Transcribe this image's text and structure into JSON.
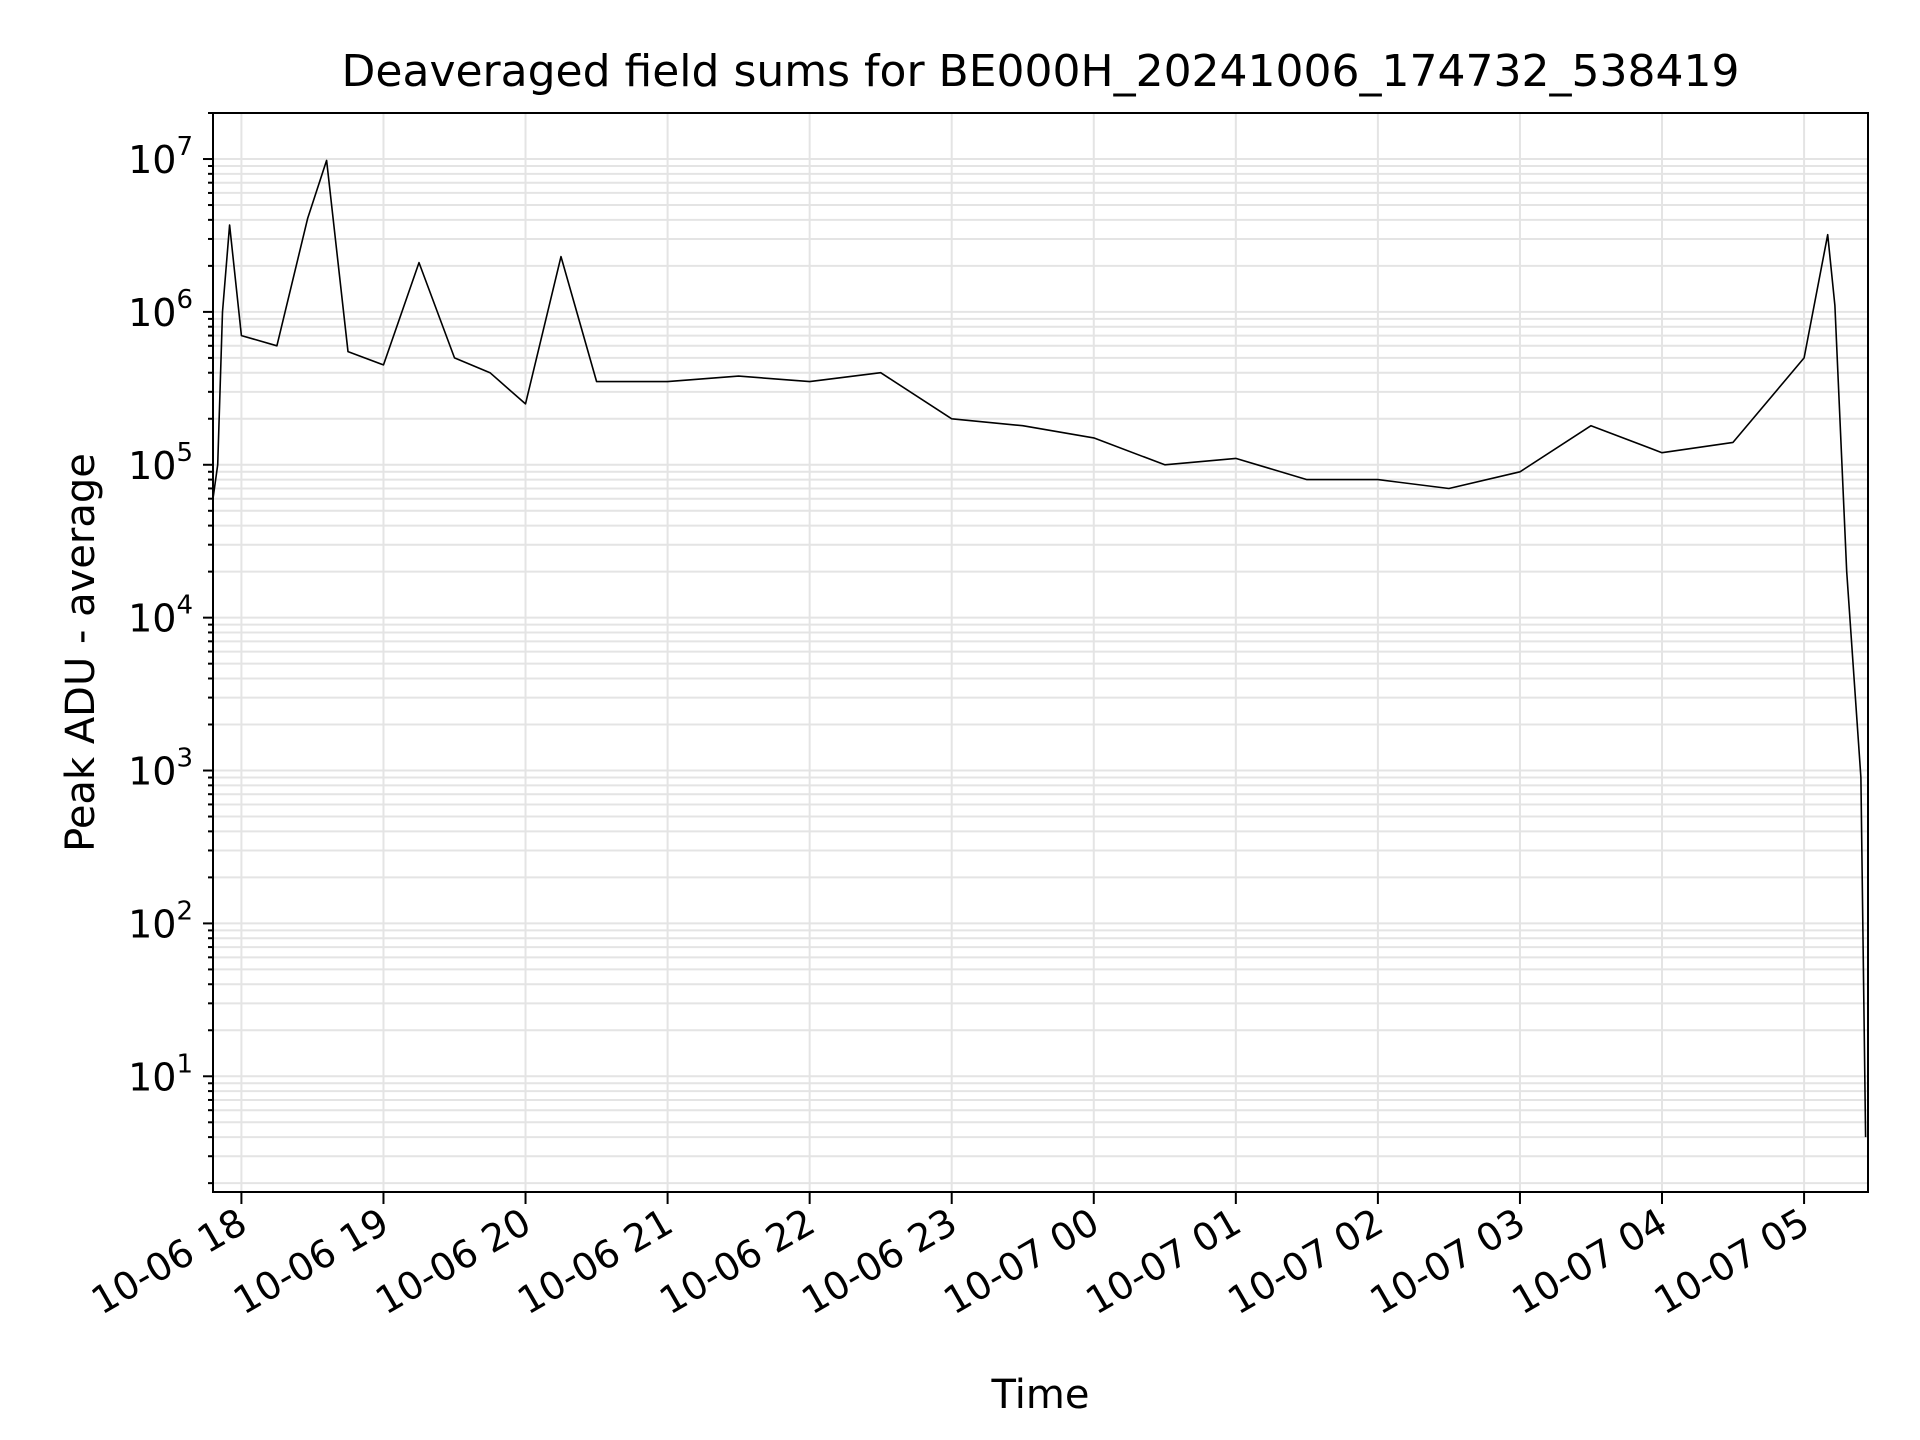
{
  "chart_data": {
    "type": "line",
    "title": "Deaveraged field sums for BE000H_20241006_174732_538419",
    "xlabel": "Time",
    "ylabel": "Peak ADU - average",
    "yscale": "log",
    "ylim": [
      1.75,
      20000000
    ],
    "xlim": [
      "2024-10-06 17:48",
      "2024-10-07 05:27"
    ],
    "grid": true,
    "x_ticks": [
      {
        "value": "2024-10-06 18:00",
        "label": "10-06 18"
      },
      {
        "value": "2024-10-06 19:00",
        "label": "10-06 19"
      },
      {
        "value": "2024-10-06 20:00",
        "label": "10-06 20"
      },
      {
        "value": "2024-10-06 21:00",
        "label": "10-06 21"
      },
      {
        "value": "2024-10-06 22:00",
        "label": "10-06 22"
      },
      {
        "value": "2024-10-06 23:00",
        "label": "10-06 23"
      },
      {
        "value": "2024-10-07 00:00",
        "label": "10-07 00"
      },
      {
        "value": "2024-10-07 01:00",
        "label": "10-07 01"
      },
      {
        "value": "2024-10-07 02:00",
        "label": "10-07 02"
      },
      {
        "value": "2024-10-07 03:00",
        "label": "10-07 03"
      },
      {
        "value": "2024-10-07 04:00",
        "label": "10-07 04"
      },
      {
        "value": "2024-10-07 05:00",
        "label": "10-07 05"
      }
    ],
    "y_ticks": [
      {
        "value": 10,
        "base": "10",
        "exp": "1"
      },
      {
        "value": 100,
        "base": "10",
        "exp": "2"
      },
      {
        "value": 1000,
        "base": "10",
        "exp": "3"
      },
      {
        "value": 10000,
        "base": "10",
        "exp": "4"
      },
      {
        "value": 100000,
        "base": "10",
        "exp": "5"
      },
      {
        "value": 1000000,
        "base": "10",
        "exp": "6"
      },
      {
        "value": 10000000,
        "base": "10",
        "exp": "7"
      }
    ],
    "series": [
      {
        "color": "#000000",
        "points": [
          {
            "x": "2024-10-06 17:48",
            "y": 60000
          },
          {
            "x": "2024-10-06 17:50",
            "y": 100000
          },
          {
            "x": "2024-10-06 17:52",
            "y": 1000000
          },
          {
            "x": "2024-10-06 17:55",
            "y": 3700000
          },
          {
            "x": "2024-10-06 18:00",
            "y": 700000
          },
          {
            "x": "2024-10-06 18:15",
            "y": 600000
          },
          {
            "x": "2024-10-06 18:28",
            "y": 4100000
          },
          {
            "x": "2024-10-06 18:36",
            "y": 9800000
          },
          {
            "x": "2024-10-06 18:45",
            "y": 550000
          },
          {
            "x": "2024-10-06 19:00",
            "y": 450000
          },
          {
            "x": "2024-10-06 19:15",
            "y": 2100000
          },
          {
            "x": "2024-10-06 19:30",
            "y": 500000
          },
          {
            "x": "2024-10-06 19:45",
            "y": 400000
          },
          {
            "x": "2024-10-06 20:00",
            "y": 250000
          },
          {
            "x": "2024-10-06 20:15",
            "y": 2300000
          },
          {
            "x": "2024-10-06 20:30",
            "y": 350000
          },
          {
            "x": "2024-10-06 21:00",
            "y": 350000
          },
          {
            "x": "2024-10-06 21:30",
            "y": 380000
          },
          {
            "x": "2024-10-06 22:00",
            "y": 350000
          },
          {
            "x": "2024-10-06 22:30",
            "y": 400000
          },
          {
            "x": "2024-10-06 23:00",
            "y": 200000
          },
          {
            "x": "2024-10-06 23:30",
            "y": 180000
          },
          {
            "x": "2024-10-07 00:00",
            "y": 150000
          },
          {
            "x": "2024-10-07 00:30",
            "y": 100000
          },
          {
            "x": "2024-10-07 01:00",
            "y": 110000
          },
          {
            "x": "2024-10-07 01:30",
            "y": 80000
          },
          {
            "x": "2024-10-07 02:00",
            "y": 80000
          },
          {
            "x": "2024-10-07 02:30",
            "y": 70000
          },
          {
            "x": "2024-10-07 03:00",
            "y": 90000
          },
          {
            "x": "2024-10-07 03:30",
            "y": 180000
          },
          {
            "x": "2024-10-07 04:00",
            "y": 120000
          },
          {
            "x": "2024-10-07 04:30",
            "y": 140000
          },
          {
            "x": "2024-10-07 05:00",
            "y": 500000
          },
          {
            "x": "2024-10-07 05:10",
            "y": 3200000
          },
          {
            "x": "2024-10-07 05:13",
            "y": 1100000
          },
          {
            "x": "2024-10-07 05:18",
            "y": 20000
          },
          {
            "x": "2024-10-07 05:24",
            "y": 900
          },
          {
            "x": "2024-10-07 05:26",
            "y": 4
          }
        ]
      }
    ]
  }
}
